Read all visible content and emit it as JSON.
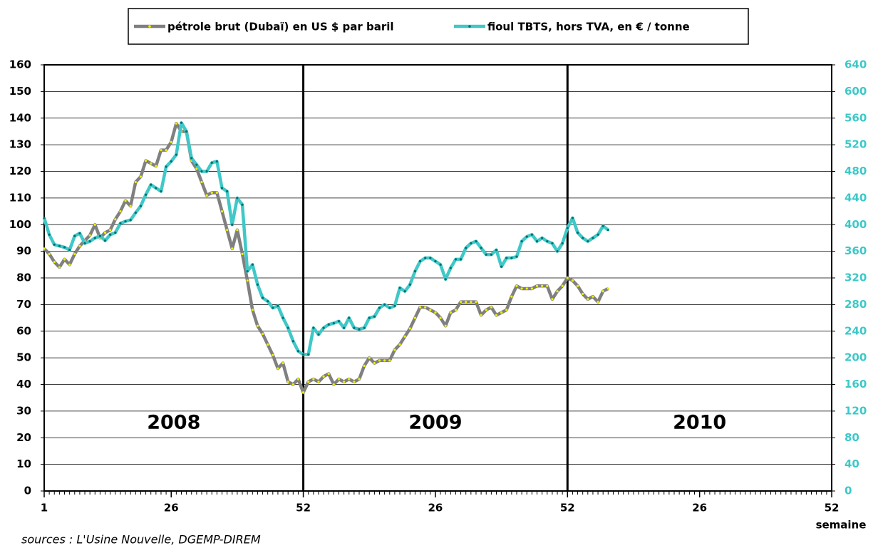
{
  "chart_data": {
    "type": "line",
    "x_label": "semaine",
    "source": "sources : L'Usine Nouvelle, DGEMP-DIREM",
    "annotations": [
      "2008",
      "2009",
      "2010"
    ],
    "x": [
      1,
      2,
      3,
      4,
      5,
      6,
      7,
      8,
      9,
      10,
      11,
      12,
      13,
      14,
      15,
      16,
      17,
      18,
      19,
      20,
      21,
      22,
      23,
      24,
      25,
      26,
      27,
      28,
      29,
      30,
      31,
      32,
      33,
      34,
      35,
      36,
      37,
      38,
      39,
      40,
      41,
      42,
      43,
      44,
      45,
      46,
      47,
      48,
      49,
      50,
      51,
      52,
      53,
      54,
      55,
      56,
      57,
      58,
      59,
      60,
      61,
      62,
      63,
      64,
      65,
      66,
      67,
      68,
      69,
      70,
      71,
      72,
      73,
      74,
      75,
      76,
      77,
      78,
      79,
      80,
      81,
      82,
      83,
      84,
      85,
      86,
      87,
      88,
      89,
      90,
      91,
      92,
      93,
      94,
      95,
      96,
      97,
      98,
      99,
      100,
      101,
      102,
      103,
      104,
      105,
      106,
      107,
      108,
      109,
      110,
      111,
      112
    ],
    "xlim": [
      1,
      156
    ],
    "xticks": [
      {
        "value": 1,
        "label": "1"
      },
      {
        "value": 26,
        "label": "26"
      },
      {
        "value": 52,
        "label": "52"
      },
      {
        "value": 78,
        "label": "26"
      },
      {
        "value": 104,
        "label": "52"
      },
      {
        "value": 130,
        "label": "26"
      },
      {
        "value": 156,
        "label": "52"
      }
    ],
    "year_dividers": [
      52,
      104
    ],
    "ylim": [
      0,
      160
    ],
    "yticks": [
      0,
      10,
      20,
      30,
      40,
      50,
      60,
      70,
      80,
      90,
      100,
      110,
      120,
      130,
      140,
      150,
      160
    ],
    "y2lim": [
      0,
      640
    ],
    "y2ticks": [
      0,
      40,
      80,
      120,
      160,
      200,
      240,
      280,
      320,
      360,
      400,
      440,
      480,
      520,
      560,
      600,
      640
    ],
    "grid": true,
    "legend": "top",
    "series": [
      {
        "name": "pétrole brut (Dubaï) en US $ par baril",
        "color": "#808080",
        "marker_color": "#f0f000",
        "values": [
          91,
          89,
          86,
          84,
          87,
          85,
          89,
          92,
          94,
          96,
          100,
          95,
          97,
          98,
          102,
          105,
          109,
          107,
          116,
          118,
          124,
          123,
          122,
          128,
          128,
          131,
          138,
          135,
          135,
          124,
          121,
          116,
          111,
          112,
          112,
          105,
          98,
          91,
          98,
          89,
          79,
          68,
          62,
          59,
          55,
          51,
          46,
          48,
          41,
          40,
          42,
          37,
          41,
          42,
          41,
          43,
          44,
          40,
          42,
          41,
          42,
          41,
          42,
          47,
          50,
          48,
          49,
          49,
          49,
          53,
          55,
          58,
          61,
          65,
          69,
          69,
          68,
          67,
          65,
          62,
          67,
          68,
          71,
          71,
          71,
          71,
          66,
          68,
          69,
          66,
          67,
          68,
          73,
          77,
          76,
          76,
          76,
          77,
          77,
          77,
          72,
          75,
          77,
          80,
          79,
          77,
          74,
          72,
          73,
          71,
          75,
          76
        ]
      },
      {
        "name": "fioul TBTS, hors TVA, en € / tonne",
        "color": "#40c8c8",
        "marker_color": "#007070",
        "axis": "y2",
        "values": [
          410,
          385,
          370,
          368,
          366,
          362,
          383,
          387,
          372,
          375,
          380,
          383,
          376,
          385,
          388,
          402,
          405,
          407,
          418,
          428,
          445,
          460,
          455,
          450,
          487,
          495,
          505,
          553,
          540,
          500,
          490,
          480,
          480,
          493,
          495,
          455,
          450,
          400,
          440,
          430,
          330,
          340,
          310,
          290,
          285,
          275,
          278,
          260,
          245,
          225,
          210,
          205,
          205,
          245,
          235,
          245,
          250,
          252,
          255,
          245,
          260,
          245,
          243,
          245,
          260,
          262,
          275,
          280,
          275,
          278,
          305,
          300,
          310,
          330,
          345,
          350,
          350,
          345,
          340,
          318,
          335,
          348,
          348,
          365,
          372,
          375,
          365,
          355,
          355,
          362,
          337,
          350,
          350,
          352,
          375,
          382,
          385,
          375,
          380,
          375,
          372,
          360,
          372,
          395,
          410,
          388,
          380,
          375,
          380,
          385,
          398,
          392
        ]
      }
    ]
  }
}
